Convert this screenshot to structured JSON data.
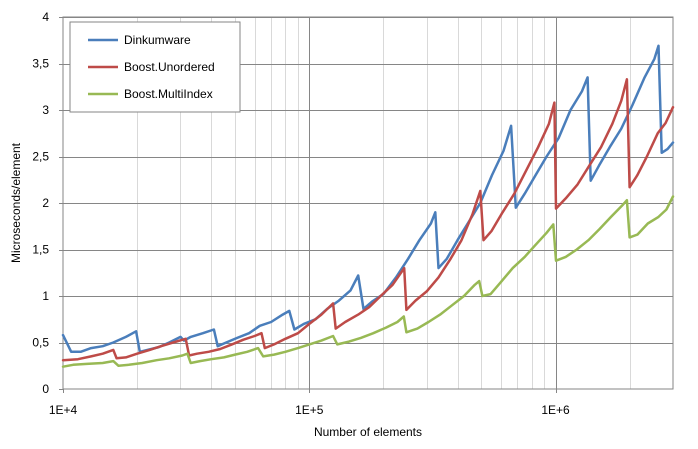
{
  "chart_data": {
    "type": "line",
    "xscale": "log",
    "xlim": [
      10000,
      3000000
    ],
    "ylim": [
      0,
      4
    ],
    "xlabel": "Number of elements",
    "ylabel": "Microseconds/element",
    "grid": true,
    "legend_position": "top-left",
    "x_ticks": [
      {
        "value": 10000,
        "label": "1E+4"
      },
      {
        "value": 100000,
        "label": "1E+5"
      },
      {
        "value": 1000000,
        "label": "1E+6"
      }
    ],
    "y_ticks": [
      {
        "value": 0,
        "label": "0"
      },
      {
        "value": 0.5,
        "label": "0,5"
      },
      {
        "value": 1,
        "label": "1"
      },
      {
        "value": 1.5,
        "label": "1,5"
      },
      {
        "value": 2,
        "label": "2"
      },
      {
        "value": 2.5,
        "label": "2,5"
      },
      {
        "value": 3,
        "label": "3"
      },
      {
        "value": 3.5,
        "label": "3,5"
      },
      {
        "value": 4,
        "label": "4"
      }
    ],
    "series": [
      {
        "name": "Dinkumware",
        "color": "#4a7ebb",
        "points": [
          [
            10000,
            0.58
          ],
          [
            10800,
            0.4
          ],
          [
            11800,
            0.4
          ],
          [
            13000,
            0.44
          ],
          [
            14500,
            0.46
          ],
          [
            16000,
            0.5
          ],
          [
            18000,
            0.56
          ],
          [
            19800,
            0.62
          ],
          [
            20500,
            0.4
          ],
          [
            22000,
            0.42
          ],
          [
            24500,
            0.45
          ],
          [
            27000,
            0.5
          ],
          [
            30000,
            0.56
          ],
          [
            31000,
            0.52
          ],
          [
            33000,
            0.56
          ],
          [
            37000,
            0.6
          ],
          [
            41000,
            0.64
          ],
          [
            42500,
            0.46
          ],
          [
            46000,
            0.5
          ],
          [
            51000,
            0.55
          ],
          [
            57000,
            0.6
          ],
          [
            63000,
            0.68
          ],
          [
            70000,
            0.72
          ],
          [
            78000,
            0.8
          ],
          [
            83000,
            0.84
          ],
          [
            87000,
            0.64
          ],
          [
            95000,
            0.7
          ],
          [
            106000,
            0.75
          ],
          [
            118000,
            0.86
          ],
          [
            132000,
            0.95
          ],
          [
            147000,
            1.06
          ],
          [
            158000,
            1.22
          ],
          [
            166000,
            0.86
          ],
          [
            180000,
            0.94
          ],
          [
            200000,
            1.02
          ],
          [
            225000,
            1.2
          ],
          [
            252000,
            1.4
          ],
          [
            280000,
            1.6
          ],
          [
            312000,
            1.78
          ],
          [
            325000,
            1.9
          ],
          [
            335000,
            1.3
          ],
          [
            362000,
            1.4
          ],
          [
            400000,
            1.6
          ],
          [
            445000,
            1.8
          ],
          [
            495000,
            2.0
          ],
          [
            552000,
            2.3
          ],
          [
            615000,
            2.56
          ],
          [
            660000,
            2.83
          ],
          [
            690000,
            1.95
          ],
          [
            750000,
            2.1
          ],
          [
            830000,
            2.3
          ],
          [
            920000,
            2.5
          ],
          [
            1030000,
            2.7
          ],
          [
            1150000,
            3.0
          ],
          [
            1280000,
            3.2
          ],
          [
            1350000,
            3.35
          ],
          [
            1390000,
            2.24
          ],
          [
            1500000,
            2.4
          ],
          [
            1660000,
            2.6
          ],
          [
            1850000,
            2.8
          ],
          [
            2050000,
            3.05
          ],
          [
            2300000,
            3.35
          ],
          [
            2520000,
            3.55
          ],
          [
            2620000,
            3.69
          ],
          [
            2700000,
            2.54
          ],
          [
            2850000,
            2.58
          ],
          [
            3000000,
            2.65
          ]
        ]
      },
      {
        "name": "Boost.Unordered",
        "color": "#be4b48",
        "points": [
          [
            10000,
            0.31
          ],
          [
            11500,
            0.32
          ],
          [
            13000,
            0.35
          ],
          [
            14500,
            0.38
          ],
          [
            16000,
            0.42
          ],
          [
            16500,
            0.33
          ],
          [
            18000,
            0.34
          ],
          [
            20000,
            0.38
          ],
          [
            22500,
            0.42
          ],
          [
            25000,
            0.46
          ],
          [
            28000,
            0.5
          ],
          [
            31500,
            0.54
          ],
          [
            32500,
            0.36
          ],
          [
            35000,
            0.38
          ],
          [
            39000,
            0.4
          ],
          [
            43500,
            0.43
          ],
          [
            48500,
            0.48
          ],
          [
            54000,
            0.53
          ],
          [
            60000,
            0.57
          ],
          [
            64000,
            0.6
          ],
          [
            66000,
            0.44
          ],
          [
            72000,
            0.48
          ],
          [
            80000,
            0.54
          ],
          [
            90000,
            0.6
          ],
          [
            100000,
            0.7
          ],
          [
            112000,
            0.8
          ],
          [
            125000,
            0.92
          ],
          [
            128000,
            0.65
          ],
          [
            140000,
            0.72
          ],
          [
            158000,
            0.8
          ],
          [
            175000,
            0.88
          ],
          [
            195000,
            1.0
          ],
          [
            218000,
            1.12
          ],
          [
            243000,
            1.3
          ],
          [
            248000,
            0.85
          ],
          [
            270000,
            0.95
          ],
          [
            300000,
            1.05
          ],
          [
            335000,
            1.2
          ],
          [
            375000,
            1.4
          ],
          [
            415000,
            1.6
          ],
          [
            460000,
            1.88
          ],
          [
            495000,
            2.13
          ],
          [
            510000,
            1.6
          ],
          [
            550000,
            1.7
          ],
          [
            610000,
            1.9
          ],
          [
            680000,
            2.1
          ],
          [
            760000,
            2.35
          ],
          [
            850000,
            2.6
          ],
          [
            940000,
            2.85
          ],
          [
            990000,
            3.08
          ],
          [
            1005000,
            1.94
          ],
          [
            1100000,
            2.05
          ],
          [
            1230000,
            2.2
          ],
          [
            1370000,
            2.4
          ],
          [
            1530000,
            2.6
          ],
          [
            1700000,
            2.85
          ],
          [
            1850000,
            3.1
          ],
          [
            1950000,
            3.33
          ],
          [
            2000000,
            2.17
          ],
          [
            2150000,
            2.3
          ],
          [
            2350000,
            2.5
          ],
          [
            2600000,
            2.75
          ],
          [
            2800000,
            2.86
          ],
          [
            3000000,
            3.03
          ]
        ]
      },
      {
        "name": "Boost.MultiIndex",
        "color": "#98b954",
        "points": [
          [
            10000,
            0.24
          ],
          [
            11000,
            0.26
          ],
          [
            12500,
            0.27
          ],
          [
            14500,
            0.28
          ],
          [
            16000,
            0.3
          ],
          [
            16800,
            0.25
          ],
          [
            18500,
            0.26
          ],
          [
            21000,
            0.28
          ],
          [
            24000,
            0.31
          ],
          [
            27000,
            0.33
          ],
          [
            30500,
            0.36
          ],
          [
            32000,
            0.38
          ],
          [
            33000,
            0.28
          ],
          [
            36000,
            0.3
          ],
          [
            40000,
            0.32
          ],
          [
            45000,
            0.34
          ],
          [
            50000,
            0.37
          ],
          [
            56000,
            0.4
          ],
          [
            62000,
            0.44
          ],
          [
            65000,
            0.35
          ],
          [
            72000,
            0.37
          ],
          [
            80000,
            0.4
          ],
          [
            90000,
            0.44
          ],
          [
            100000,
            0.48
          ],
          [
            112000,
            0.52
          ],
          [
            125000,
            0.57
          ],
          [
            130000,
            0.48
          ],
          [
            145000,
            0.51
          ],
          [
            162000,
            0.55
          ],
          [
            182000,
            0.6
          ],
          [
            205000,
            0.66
          ],
          [
            228000,
            0.72
          ],
          [
            242000,
            0.78
          ],
          [
            248000,
            0.61
          ],
          [
            275000,
            0.65
          ],
          [
            305000,
            0.72
          ],
          [
            340000,
            0.8
          ],
          [
            380000,
            0.9
          ],
          [
            425000,
            1.0
          ],
          [
            470000,
            1.12
          ],
          [
            490000,
            1.16
          ],
          [
            505000,
            1.0
          ],
          [
            545000,
            1.02
          ],
          [
            600000,
            1.15
          ],
          [
            670000,
            1.3
          ],
          [
            750000,
            1.42
          ],
          [
            830000,
            1.55
          ],
          [
            920000,
            1.68
          ],
          [
            980000,
            1.77
          ],
          [
            1005000,
            1.38
          ],
          [
            1100000,
            1.42
          ],
          [
            1220000,
            1.5
          ],
          [
            1360000,
            1.6
          ],
          [
            1510000,
            1.72
          ],
          [
            1680000,
            1.85
          ],
          [
            1860000,
            1.97
          ],
          [
            1950000,
            2.03
          ],
          [
            2000000,
            1.63
          ],
          [
            2150000,
            1.66
          ],
          [
            2370000,
            1.78
          ],
          [
            2620000,
            1.85
          ],
          [
            2820000,
            1.93
          ],
          [
            3000000,
            2.07
          ]
        ]
      }
    ]
  }
}
